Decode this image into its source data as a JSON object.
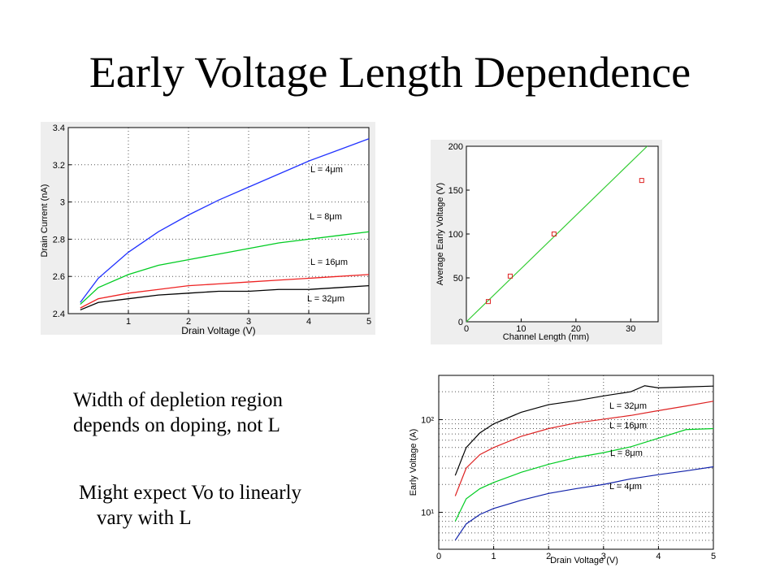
{
  "slide": {
    "title": "Early Voltage Length Dependence",
    "note1_line1": "Width of depletion region",
    "note1_line2": "depends on doping, not L",
    "note2_line1": "Might expect Vo to linearly",
    "note2_line2": "vary with L"
  },
  "chart_data": [
    {
      "type": "line",
      "title": "",
      "xlabel": "Drain Voltage (V)",
      "ylabel": "Drain Current (nA)",
      "xlim": [
        0,
        5
      ],
      "ylim": [
        2.4,
        3.4
      ],
      "x_ticks": [
        1,
        2,
        3,
        4,
        5
      ],
      "x_tick_labels": [
        "1",
        "2",
        "3",
        "4",
        "5"
      ],
      "y_ticks": [
        2.4,
        2.6,
        2.8,
        3.0,
        3.2,
        3.4
      ],
      "y_tick_labels": [
        "2.4",
        "2.6",
        "2.8",
        "3",
        "3.2",
        "3.4"
      ],
      "grid": true,
      "series": [
        {
          "name": "L = 4μm",
          "color": "#2233ff",
          "x": [
            0.2,
            0.5,
            1.0,
            1.5,
            2.0,
            2.5,
            3.0,
            3.5,
            4.0,
            4.5,
            5.0
          ],
          "y": [
            2.46,
            2.59,
            2.73,
            2.84,
            2.93,
            3.01,
            3.08,
            3.15,
            3.22,
            3.28,
            3.34
          ]
        },
        {
          "name": "L = 8μm",
          "color": "#00cc22",
          "x": [
            0.2,
            0.5,
            1.0,
            1.5,
            2.0,
            2.5,
            3.0,
            3.5,
            4.0,
            4.5,
            5.0
          ],
          "y": [
            2.45,
            2.54,
            2.61,
            2.66,
            2.69,
            2.72,
            2.75,
            2.78,
            2.8,
            2.82,
            2.84
          ]
        },
        {
          "name": "L = 16μm",
          "color": "#ee2222",
          "x": [
            0.2,
            0.5,
            1.0,
            1.5,
            2.0,
            2.5,
            3.0,
            3.5,
            4.0,
            4.5,
            5.0
          ],
          "y": [
            2.43,
            2.48,
            2.51,
            2.53,
            2.55,
            2.56,
            2.57,
            2.58,
            2.59,
            2.6,
            2.61
          ]
        },
        {
          "name": "L = 32μm",
          "color": "#000000",
          "x": [
            0.2,
            0.5,
            1.0,
            1.5,
            2.0,
            2.5,
            3.0,
            3.5,
            4.0,
            4.5,
            5.0
          ],
          "y": [
            2.42,
            2.46,
            2.48,
            2.5,
            2.51,
            2.52,
            2.52,
            2.53,
            2.53,
            2.54,
            2.55
          ]
        }
      ]
    },
    {
      "type": "scatter",
      "title": "",
      "xlabel": "Channel Length (mm)",
      "ylabel": "Average Early Voltage (V)",
      "xlim": [
        0,
        35
      ],
      "ylim": [
        0,
        200
      ],
      "x_ticks": [
        0,
        10,
        20,
        30
      ],
      "x_tick_labels": [
        "0",
        "10",
        "20",
        "30"
      ],
      "y_ticks": [
        0,
        50,
        100,
        150,
        200
      ],
      "y_tick_labels": [
        "0",
        "50",
        "100",
        "150",
        "200"
      ],
      "grid": false,
      "points": {
        "color": "#dd2222",
        "x": [
          4,
          8,
          16,
          32
        ],
        "y": [
          23,
          52,
          100,
          161
        ]
      },
      "fit_line": {
        "color": "#33cc33",
        "x": [
          0,
          33
        ],
        "y": [
          0,
          200
        ]
      }
    },
    {
      "type": "line",
      "title": "",
      "xlabel": "Drain Voltage (V)",
      "ylabel": "Early Voltage (A)",
      "xlim": [
        0,
        5
      ],
      "ylim": [
        4,
        300
      ],
      "y_scale": "log",
      "x_ticks": [
        0,
        1,
        2,
        3,
        4,
        5
      ],
      "x_tick_labels": [
        "0",
        "1",
        "2",
        "3",
        "4",
        "5"
      ],
      "y_ticks": [
        10,
        100
      ],
      "y_tick_labels": [
        "10¹",
        "10²"
      ],
      "grid": true,
      "series": [
        {
          "name": "L = 32μm",
          "color": "#000000",
          "x": [
            0.3,
            0.5,
            0.75,
            1.0,
            1.5,
            2.0,
            2.5,
            3.0,
            3.5,
            3.75,
            4.0,
            4.5,
            5.0
          ],
          "y": [
            25,
            50,
            72,
            90,
            120,
            145,
            160,
            180,
            200,
            232,
            220,
            225,
            230
          ]
        },
        {
          "name": "L = 16μm",
          "color": "#dd2222",
          "x": [
            0.3,
            0.5,
            0.75,
            1.0,
            1.5,
            2.0,
            2.5,
            3.0,
            3.5,
            4.0,
            4.5,
            5.0
          ],
          "y": [
            15,
            30,
            42,
            50,
            66,
            80,
            92,
            101,
            111,
            125,
            140,
            158
          ]
        },
        {
          "name": "L = 8μm",
          "color": "#00cc22",
          "x": [
            0.3,
            0.5,
            0.75,
            1.0,
            1.5,
            2.0,
            2.5,
            3.0,
            3.5,
            4.0,
            4.5,
            5.0
          ],
          "y": [
            8,
            14,
            18,
            21,
            27,
            33,
            39,
            44,
            51,
            63,
            78,
            80
          ]
        },
        {
          "name": "L = 4μm",
          "color": "#1122aa",
          "x": [
            0.3,
            0.5,
            0.75,
            1.0,
            1.5,
            2.0,
            2.5,
            3.0,
            3.5,
            4.0,
            4.5,
            5.0
          ],
          "y": [
            5,
            7.5,
            9.5,
            11,
            13.5,
            16,
            18,
            20,
            23,
            25.5,
            28,
            31
          ]
        }
      ]
    }
  ]
}
